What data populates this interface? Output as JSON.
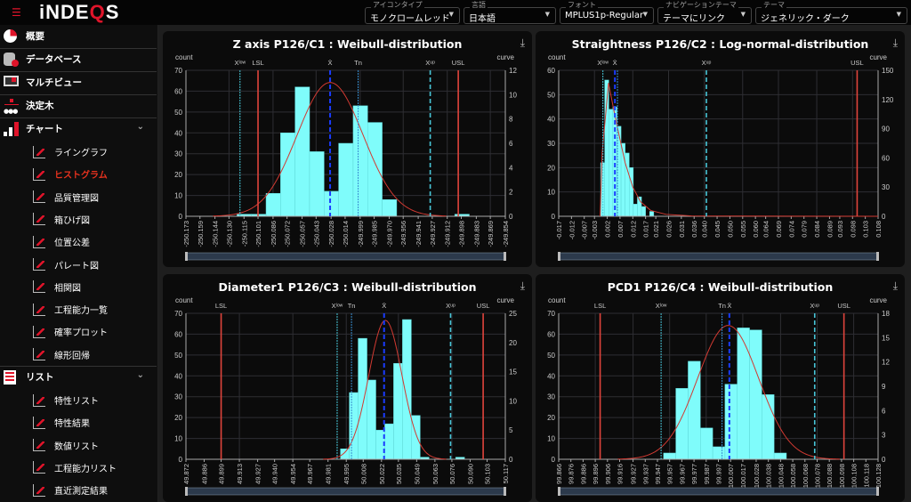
{
  "header": {
    "logo": "iNDEQS",
    "dropdowns": [
      {
        "label": "アイコンタイプ",
        "value": "モノクロームレッド"
      },
      {
        "label": "言語",
        "value": "日本語"
      },
      {
        "label": "フォント",
        "value": "MPLUS1p-Regular"
      },
      {
        "label": "ナビゲーションテーマ",
        "value": "テーマにリンク"
      },
      {
        "label": "テーマ",
        "value": "ジェネリック・ダーク"
      }
    ]
  },
  "sidebar": {
    "items": [
      {
        "label": "概要",
        "icon": "pie-chart-icon"
      },
      {
        "label": "データベース",
        "icon": "database-icon"
      },
      {
        "label": "マルチビュー",
        "icon": "multiview-icon"
      },
      {
        "label": "決定木",
        "icon": "decision-tree-icon"
      },
      {
        "label": "チャート",
        "icon": "bar-chart-icon",
        "sub": [
          {
            "label": "ライングラフ",
            "icon": "line-graph-icon"
          },
          {
            "label": "ヒストグラム",
            "icon": "histogram-icon",
            "active": true
          },
          {
            "label": "品質管理図",
            "icon": "control-chart-icon"
          },
          {
            "label": "箱ひげ図",
            "icon": "boxplot-icon"
          },
          {
            "label": "位置公差",
            "icon": "position-tolerance-icon"
          },
          {
            "label": "パレート図",
            "icon": "pareto-icon"
          },
          {
            "label": "相関図",
            "icon": "correlation-icon"
          },
          {
            "label": "工程能力一覧",
            "icon": "capability-overview-icon"
          },
          {
            "label": "確率プロット",
            "icon": "probability-plot-icon"
          },
          {
            "label": "線形回帰",
            "icon": "linear-regression-icon"
          }
        ]
      },
      {
        "label": "リスト",
        "icon": "list-icon",
        "sub": [
          {
            "label": "特性リスト",
            "icon": "characteristic-list-icon"
          },
          {
            "label": "特性結果",
            "icon": "characteristic-result-icon"
          },
          {
            "label": "数値リスト",
            "icon": "value-list-icon"
          },
          {
            "label": "工程能力リスト",
            "icon": "capability-list-icon"
          },
          {
            "label": "直近測定結果",
            "icon": "recent-results-icon"
          }
        ]
      }
    ]
  },
  "colors": {
    "bar": "#7ffcfb",
    "limit": "#e0443c",
    "mean": "#1a3cff",
    "tn": "#3a8fd0",
    "xlimit": "#48c6d8",
    "curve": "#d23a32",
    "accent": "#e0142a"
  },
  "chart_data": [
    {
      "type": "bar",
      "title": "Z axis P126/C1 : Weibull-distribution",
      "ylabel": "count",
      "y2label": "curve",
      "ylim": [
        0,
        70
      ],
      "y2lim": [
        0,
        12
      ],
      "ystep": 10,
      "y2step": 2,
      "xticks": [
        "-250.173",
        "-250.159",
        "-250.144",
        "-250.130",
        "-250.115",
        "-250.101",
        "-250.086",
        "-250.072",
        "-250.057",
        "-250.043",
        "-250.028",
        "-250.014",
        "-249.999",
        "-249.985",
        "-249.970",
        "-249.956",
        "-249.941",
        "-249.927",
        "-249.912",
        "-249.898",
        "-249.883",
        "-249.869",
        "-249.854"
      ],
      "bin_start": -250.122,
      "bin_width": 0.0145,
      "counts": [
        1,
        1,
        11,
        40,
        62,
        31,
        12,
        35,
        53,
        45,
        8,
        0,
        0,
        0,
        0,
        1
      ],
      "curve": {
        "kind": "normal",
        "mean": -250.029,
        "sigma": 0.033,
        "peak": 11
      },
      "lines": [
        {
          "label": "Xˡᵒʷ",
          "value": -250.119,
          "kind": "xlimit-dot"
        },
        {
          "label": "LSL",
          "value": -250.101,
          "kind": "limit"
        },
        {
          "label": "X̄",
          "value": -250.029,
          "kind": "mean"
        },
        {
          "label": "Tn",
          "value": -250.001,
          "kind": "tn"
        },
        {
          "label": "Xᵘᵖ",
          "value": -249.929,
          "kind": "xlimit"
        },
        {
          "label": "USL",
          "value": -249.901,
          "kind": "limit"
        }
      ]
    },
    {
      "type": "bar",
      "title": "Straightness P126/C2 : Log-normal-distribution",
      "ylabel": "count",
      "y2label": "curve",
      "ylim": [
        0,
        60
      ],
      "y2lim": [
        0,
        150
      ],
      "ystep": 10,
      "y2step": 30,
      "xticks": [
        "-0.017",
        "-0.012",
        "-0.007",
        "-0.003",
        "0.002",
        "0.007",
        "0.012",
        "0.017",
        "0.021",
        "0.026",
        "0.031",
        "0.036",
        "0.040",
        "0.045",
        "0.050",
        "0.055",
        "0.060",
        "0.064",
        "0.069",
        "0.074",
        "0.079",
        "0.084",
        "0.089",
        "0.093",
        "0.098",
        "0.103",
        "0.108"
      ],
      "bin_start": -0.0006,
      "bin_width": 0.0016,
      "counts": [
        22,
        56,
        44,
        45,
        37,
        30,
        26,
        20,
        5,
        8,
        4,
        0,
        2
      ],
      "curve": {
        "kind": "points",
        "points": [
          [
            -0.0008,
            0
          ],
          [
            0.0,
            65
          ],
          [
            0.0025,
            137
          ],
          [
            0.0045,
            110
          ],
          [
            0.0065,
            85
          ],
          [
            0.009,
            55
          ],
          [
            0.012,
            30
          ],
          [
            0.015,
            15
          ],
          [
            0.019,
            6
          ],
          [
            0.025,
            2
          ],
          [
            0.035,
            0.3
          ],
          [
            0.108,
            0
          ]
        ]
      },
      "lines": [
        {
          "label": "Xˡᵒʷ",
          "value": 0.0003,
          "kind": "xlimit-dot"
        },
        {
          "label": "X̄",
          "value": 0.005,
          "kind": "mean"
        },
        {
          "label": "",
          "value": 0.006,
          "kind": "tn"
        },
        {
          "label": "Xᵘᵖ",
          "value": 0.0408,
          "kind": "xlimit"
        },
        {
          "label": "USL",
          "value": 0.0998,
          "kind": "limit"
        }
      ]
    },
    {
      "type": "bar",
      "title": "Diameter1 P126/C3 : Weibull-distribution",
      "ylabel": "count",
      "y2label": "curve",
      "ylim": [
        0,
        70
      ],
      "y2lim": [
        0,
        25
      ],
      "ystep": 10,
      "y2step": 5,
      "xticks": [
        "49.872",
        "49.886",
        "49.899",
        "49.913",
        "49.927",
        "49.940",
        "49.954",
        "49.967",
        "49.981",
        "49.995",
        "50.008",
        "50.022",
        "50.035",
        "50.049",
        "50.063",
        "50.076",
        "50.090",
        "50.103",
        "50.117"
      ],
      "bin_start": 49.9905,
      "bin_width": 0.0068,
      "counts": [
        5,
        32,
        58,
        38,
        14,
        17,
        46,
        67,
        21,
        1,
        0,
        0,
        0,
        1
      ],
      "curve": {
        "kind": "normal",
        "mean": 50.025,
        "sigma": 0.0127,
        "peak": 23.8
      },
      "lines": [
        {
          "label": "LSL",
          "value": 49.899,
          "kind": "limit"
        },
        {
          "label": "Xˡᵒʷ",
          "value": 49.988,
          "kind": "xlimit-dot"
        },
        {
          "label": "Tn",
          "value": 49.999,
          "kind": "tn"
        },
        {
          "label": "X̄",
          "value": 50.024,
          "kind": "mean"
        },
        {
          "label": "Xᵘᵖ",
          "value": 50.075,
          "kind": "xlimit"
        },
        {
          "label": "USL",
          "value": 50.1,
          "kind": "limit"
        }
      ]
    },
    {
      "type": "bar",
      "title": "PCD1 P126/C4 : Weibull-distribution",
      "ylabel": "count",
      "y2label": "curve",
      "ylim": [
        0,
        70
      ],
      "y2lim": [
        0,
        18
      ],
      "ystep": 10,
      "y2step": 3,
      "xticks": [
        "99.866",
        "99.876",
        "99.886",
        "99.896",
        "99.906",
        "99.916",
        "99.927",
        "99.937",
        "99.947",
        "99.957",
        "99.967",
        "99.977",
        "99.987",
        "99.997",
        "100.007",
        "100.017",
        "100.028",
        "100.038",
        "100.048",
        "100.058",
        "100.068",
        "100.078",
        "100.088",
        "100.098",
        "100.108",
        "100.118",
        "100.128"
      ],
      "bin_start": 99.952,
      "bin_width": 0.01008,
      "counts": [
        3,
        34,
        47,
        15,
        6,
        36,
        63,
        62,
        31,
        3
      ],
      "curve": {
        "kind": "normal",
        "mean": 100.005,
        "sigma": 0.025,
        "peak": 16.5
      },
      "lines": [
        {
          "label": "LSL",
          "value": 99.9,
          "kind": "limit"
        },
        {
          "label": "Xˡᵒʷ",
          "value": 99.95,
          "kind": "xlimit-dot"
        },
        {
          "label": "Tn",
          "value": 100.0,
          "kind": "tn"
        },
        {
          "label": "X̄",
          "value": 100.006,
          "kind": "mean"
        },
        {
          "label": "Xᵘᵖ",
          "value": 100.076,
          "kind": "xlimit"
        },
        {
          "label": "USL",
          "value": 100.1,
          "kind": "limit"
        }
      ]
    }
  ]
}
